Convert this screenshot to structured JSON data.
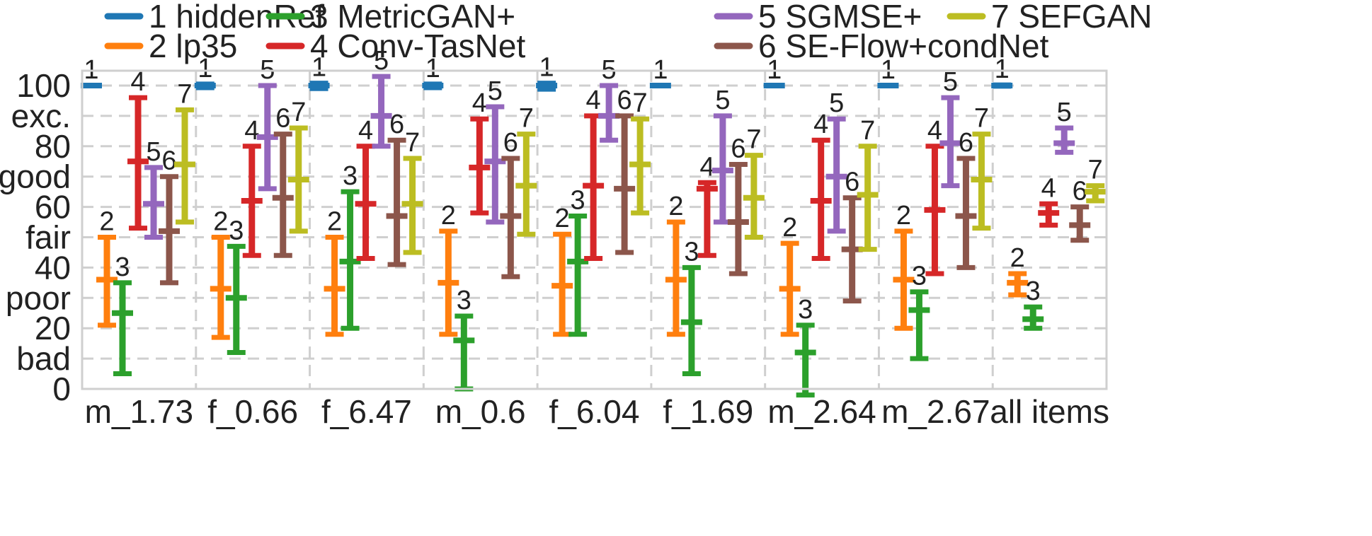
{
  "chart_data": {
    "type": "errorbar",
    "ylim": [
      0,
      100
    ],
    "grid": true,
    "legend_placement": "top",
    "yticks": [
      {
        "value": 0,
        "label": "0"
      },
      {
        "value": 10,
        "label": "bad"
      },
      {
        "value": 20,
        "label": "20"
      },
      {
        "value": 30,
        "label": "poor"
      },
      {
        "value": 40,
        "label": "40"
      },
      {
        "value": 50,
        "label": "fair"
      },
      {
        "value": 60,
        "label": "60"
      },
      {
        "value": 70,
        "label": "good"
      },
      {
        "value": 80,
        "label": "80"
      },
      {
        "value": 90,
        "label": "exc."
      },
      {
        "value": 100,
        "label": "100"
      }
    ],
    "categories": [
      "m_1.73",
      "f_0.66",
      "f_6.47",
      "m_0.6",
      "f_6.04",
      "f_1.69",
      "m_2.64",
      "m_2.67",
      "all items"
    ],
    "series": [
      {
        "name": "1 hiddenRef",
        "label": "1",
        "color": "#1f77b4",
        "mean": [
          100,
          100,
          100,
          100,
          100,
          100,
          100,
          100,
          100
        ],
        "low": [
          100,
          99.3,
          99,
          99.3,
          98.8,
          100,
          100,
          100,
          99.8
        ],
        "high": [
          100,
          100.5,
          100.8,
          100.5,
          100.8,
          100,
          100,
          100,
          100.2
        ]
      },
      {
        "name": "2 lp35",
        "label": "2",
        "color": "#ff7f0e",
        "mean": [
          36,
          33,
          33,
          35,
          34,
          36,
          33,
          36,
          35
        ],
        "low": [
          21,
          17,
          18,
          18,
          18,
          18,
          18,
          20,
          31
        ],
        "high": [
          50,
          50,
          50,
          52,
          51,
          55,
          48,
          52,
          38
        ]
      },
      {
        "name": "3 MetricGAN+",
        "label": "3",
        "color": "#2ca02c",
        "mean": [
          25,
          30,
          42,
          16,
          42,
          22,
          12,
          26,
          23
        ],
        "low": [
          5,
          12,
          20,
          0,
          18,
          5,
          -5,
          10,
          20
        ],
        "high": [
          35,
          47,
          65,
          24,
          57,
          40,
          21,
          32,
          27
        ]
      },
      {
        "name": "4 Conv-TasNet",
        "label": "4",
        "color": "#d62728",
        "mean": [
          75,
          62,
          61,
          73,
          67,
          66,
          62,
          59,
          58
        ],
        "low": [
          53,
          44,
          43,
          58,
          43,
          44,
          43,
          38,
          54
        ],
        "high": [
          96,
          80,
          80,
          89,
          90,
          68,
          82,
          80,
          61
        ]
      },
      {
        "name": "5 SGMSE+",
        "label": "5",
        "color": "#9467bd",
        "mean": [
          61,
          83,
          90,
          75,
          90,
          72,
          70,
          81,
          81
        ],
        "low": [
          50,
          66,
          80,
          55,
          82,
          55,
          52,
          67,
          78
        ],
        "high": [
          73,
          100,
          103,
          93,
          100,
          90,
          89,
          96,
          86
        ]
      },
      {
        "name": "6 SE-Flow+condNet",
        "label": "6",
        "color": "#8c564b",
        "mean": [
          52,
          63,
          57,
          57,
          66,
          55,
          46,
          57,
          54
        ],
        "low": [
          35,
          44,
          41,
          37,
          45,
          38,
          29,
          40,
          49
        ],
        "high": [
          70,
          84,
          82,
          76,
          90,
          74,
          63,
          76,
          60
        ]
      },
      {
        "name": "7 SEFGAN",
        "label": "7",
        "color": "#bcbd22",
        "mean": [
          74,
          69,
          61,
          67,
          74,
          63,
          64,
          69,
          65
        ],
        "low": [
          55,
          52,
          45,
          51,
          58,
          50,
          46,
          53,
          62
        ],
        "high": [
          92,
          86,
          76,
          84,
          89,
          77,
          80,
          84,
          67
        ]
      }
    ]
  }
}
